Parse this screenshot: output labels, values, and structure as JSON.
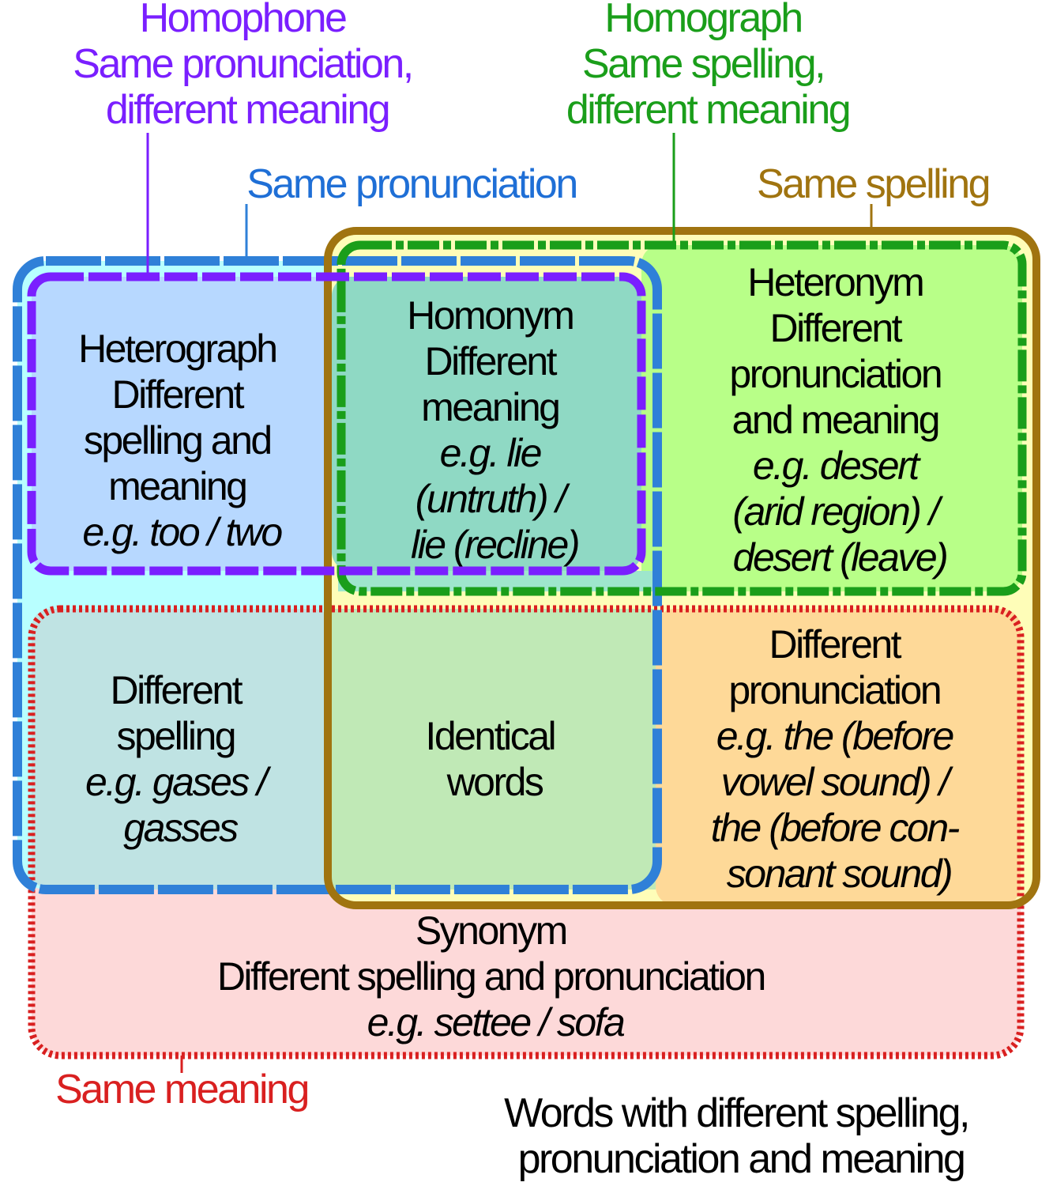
{
  "colors": {
    "homophone": "#7a1fff",
    "homograph": "#1a9e1a",
    "same_pronunciation": "#1f6fd6",
    "same_spelling": "#a07410",
    "same_meaning": "#d92020",
    "text": "#000000"
  },
  "labels": {
    "homophone": [
      "Homophone",
      "Same pronunciation,",
      "different meaning"
    ],
    "homograph": [
      "Homograph",
      "Same spelling,",
      "different meaning"
    ],
    "same_pronunciation": "Same pronunciation",
    "same_spelling": "Same spelling",
    "same_meaning": "Same meaning",
    "outside": [
      "Words with different spelling,",
      "pronunciation and meaning"
    ]
  },
  "cells": {
    "heterograph": {
      "lines": [
        "Heterograph",
        "Different",
        "spelling and",
        "meaning"
      ],
      "example": [
        "e.g. too / two"
      ]
    },
    "homonym": {
      "lines": [
        "Homonym",
        "Different",
        "meaning"
      ],
      "example": [
        "e.g. lie",
        "(untruth) /",
        "lie (recline)"
      ]
    },
    "heteronym": {
      "lines": [
        "Heteronym",
        "Different",
        "pronunciation",
        "and meaning"
      ],
      "example": [
        "e.g. desert",
        "(arid region) /",
        "desert (leave)"
      ]
    },
    "different_spelling": {
      "lines": [
        "Different",
        "spelling"
      ],
      "example": [
        "e.g. gases /",
        "gasses"
      ]
    },
    "identical_words": {
      "lines": [
        "Identical",
        "words"
      ],
      "example": []
    },
    "different_pronunciation": {
      "lines": [
        "Different",
        "pronunciation"
      ],
      "example": [
        "e.g. the (before",
        "vowel sound) /",
        "the (before con-",
        "sonant sound)"
      ]
    },
    "synonym": {
      "lines": [
        "Synonym",
        "Different spelling and pronunciation"
      ],
      "example": [
        "e.g. settee / sofa"
      ]
    }
  }
}
